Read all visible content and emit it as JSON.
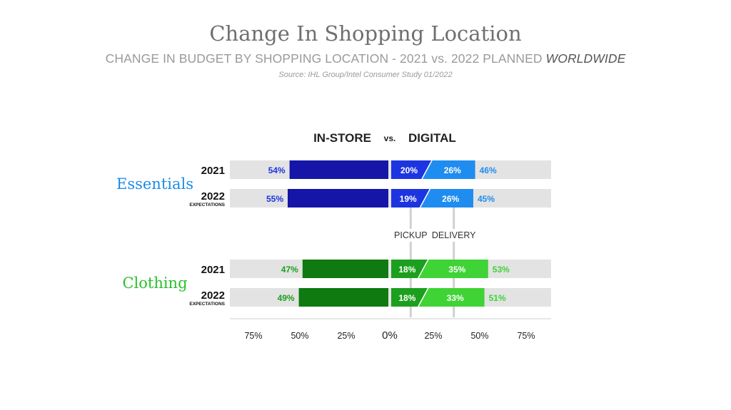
{
  "chart_data": {
    "type": "bar",
    "title": "Change In Shopping Location",
    "subtitle": "CHANGE IN BUDGET BY SHOPPING LOCATION - 2021 vs. 2022 PLANNED",
    "subtitle_emphasis": "WORLDWIDE",
    "source": "Source: IHL Group/Intel Consumer Study 01/2022",
    "header": {
      "left": "IN-STORE",
      "vs": "vs.",
      "right": "DIGITAL"
    },
    "mid_labels": {
      "pickup": "PICKUP",
      "delivery": "DELIVERY"
    },
    "xlim": [
      -80,
      80
    ],
    "x_ticks": [
      "75%",
      "50%",
      "25%",
      "0%",
      "25%",
      "50%",
      "75%"
    ],
    "x_tick_values": [
      -75,
      -50,
      -25,
      0,
      25,
      50,
      75
    ],
    "groups": [
      {
        "name": "Essentials",
        "color": "#1a8be8",
        "rows": [
          {
            "label": "2021",
            "sublabel": "",
            "in_store": 54,
            "pickup": 20,
            "delivery": 26,
            "digital_total": 46,
            "in_store_label": "54%",
            "pickup_label": "20%",
            "delivery_label": "26%",
            "digital_label": "46%"
          },
          {
            "label": "2022",
            "sublabel": "EXPECTATIONS",
            "in_store": 55,
            "pickup": 19,
            "delivery": 26,
            "digital_total": 45,
            "in_store_label": "55%",
            "pickup_label": "19%",
            "delivery_label": "26%",
            "digital_label": "45%"
          }
        ]
      },
      {
        "name": "Clothing",
        "color": "#27c22a",
        "rows": [
          {
            "label": "2021",
            "sublabel": "",
            "in_store": 47,
            "pickup": 18,
            "delivery": 35,
            "digital_total": 53,
            "in_store_label": "47%",
            "pickup_label": "18%",
            "delivery_label": "35%",
            "digital_label": "53%"
          },
          {
            "label": "2022",
            "sublabel": "EXPECTATIONS",
            "in_store": 49,
            "pickup": 18,
            "delivery": 33,
            "digital_total": 51,
            "in_store_label": "49%",
            "pickup_label": "18%",
            "delivery_label": "33%",
            "digital_label": "51%"
          }
        ]
      }
    ],
    "colors": {
      "track": "#e3e3e3",
      "essentials_in_store": "#1515a8",
      "essentials_pickup": "#1d35e0",
      "essentials_delivery": "#1f8cf0",
      "essentials_label": "#1d35e0",
      "essentials_outer_label": "#1f8cf0",
      "clothing_in_store": "#0e7a10",
      "clothing_pickup": "#1c9f1e",
      "clothing_delivery": "#3fd335",
      "clothing_label": "#1c9f1e",
      "clothing_outer_label": "#3fd335"
    }
  }
}
